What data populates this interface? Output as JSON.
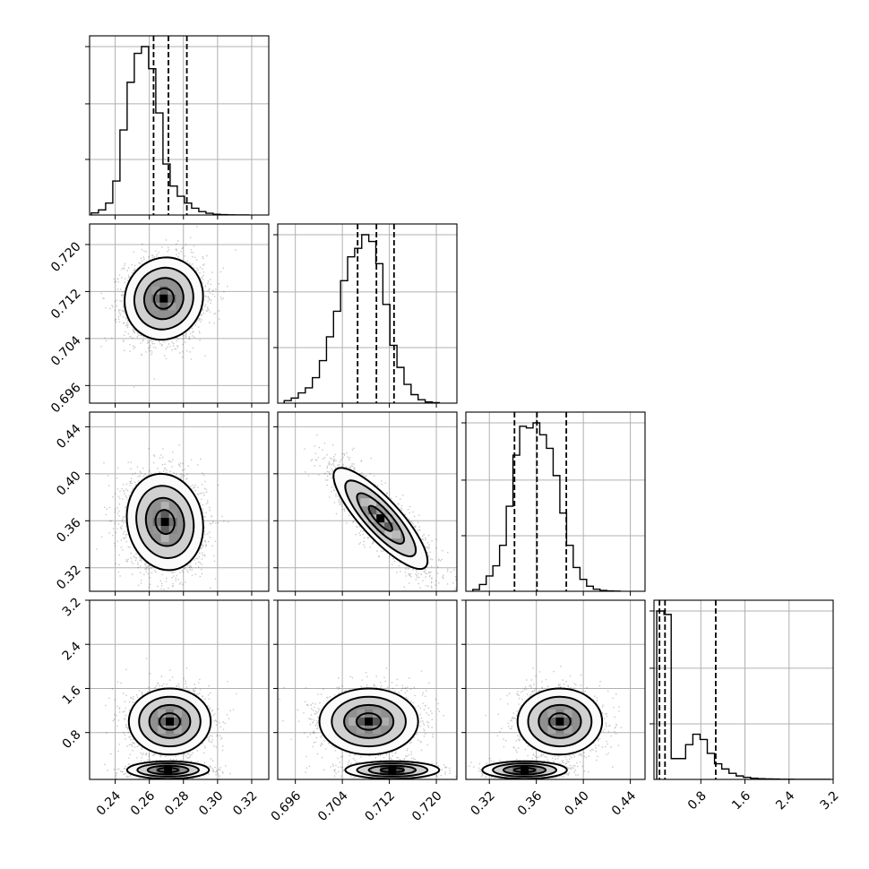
{
  "chart_data": {
    "type": "corner",
    "parameters": [
      {
        "range": [
          0.225,
          0.33
        ],
        "ticks": [
          0.24,
          0.26,
          0.28,
          0.3,
          0.32
        ],
        "tick_labels": [
          "0.24",
          "0.26",
          "0.28",
          "0.30",
          "0.32"
        ],
        "quantiles": [
          0.2625,
          0.2712,
          0.282
        ],
        "hist_bins": [
          0.226,
          0.2302,
          0.2344,
          0.2386,
          0.2428,
          0.247,
          0.2512,
          0.2554,
          0.2596,
          0.2638,
          0.268,
          0.2722,
          0.2764,
          0.2806,
          0.2848,
          0.289,
          0.2932,
          0.2974,
          0.3016,
          0.3058,
          0.31,
          0.3142,
          0.3184
        ],
        "hist_values": [
          0.012,
          0.03,
          0.07,
          0.2,
          0.5,
          0.78,
          0.95,
          0.99,
          0.86,
          0.6,
          0.3,
          0.17,
          0.11,
          0.07,
          0.04,
          0.02,
          0.01,
          0.004,
          0.002,
          0.001,
          0.0005,
          0.0003
        ]
      },
      {
        "range": [
          0.693,
          0.7235
        ],
        "ticks": [
          0.696,
          0.704,
          0.712,
          0.72
        ],
        "tick_labels": [
          "0.696",
          "0.704",
          "0.712",
          "0.720"
        ],
        "quantiles": [
          0.7066,
          0.7098,
          0.7128
        ],
        "hist_bins": [
          0.6941,
          0.6953,
          0.6965,
          0.6977,
          0.6989,
          0.7001,
          0.7013,
          0.7025,
          0.7037,
          0.7049,
          0.7061,
          0.7073,
          0.7085,
          0.7097,
          0.7109,
          0.7121,
          0.7133,
          0.7145,
          0.7157,
          0.7169,
          0.7181,
          0.7193,
          0.7205
        ],
        "hist_values": [
          0.015,
          0.03,
          0.06,
          0.09,
          0.15,
          0.25,
          0.39,
          0.54,
          0.72,
          0.86,
          0.91,
          0.99,
          0.95,
          0.82,
          0.58,
          0.34,
          0.21,
          0.11,
          0.05,
          0.02,
          0.007,
          0.003
        ]
      },
      {
        "range": [
          0.3,
          0.4525
        ],
        "ticks": [
          0.32,
          0.36,
          0.4,
          0.44
        ],
        "tick_labels": [
          "0.32",
          "0.36",
          "0.40",
          "0.44"
        ],
        "quantiles": [
          0.3414,
          0.3605,
          0.3855
        ],
        "hist_bins": [
          0.3059,
          0.3116,
          0.3173,
          0.323,
          0.3287,
          0.3344,
          0.3401,
          0.3458,
          0.3515,
          0.3572,
          0.3629,
          0.3686,
          0.3743,
          0.38,
          0.3857,
          0.3914,
          0.3971,
          0.4028,
          0.4085,
          0.4142,
          0.4199,
          0.4256,
          0.4313
        ],
        "hist_values": [
          0.01,
          0.04,
          0.09,
          0.15,
          0.27,
          0.5,
          0.8,
          0.97,
          0.96,
          0.99,
          0.92,
          0.84,
          0.68,
          0.46,
          0.27,
          0.14,
          0.07,
          0.03,
          0.012,
          0.005,
          0.002,
          0.001
        ]
      },
      {
        "range": [
          -0.05,
          3.2
        ],
        "ticks": [
          0.8,
          1.6,
          2.4,
          3.2
        ],
        "tick_labels": [
          "0.8",
          "1.6",
          "2.4",
          "3.2"
        ],
        "quantiles": [
          0.05,
          0.15,
          1.07
        ],
        "hist_bins": [
          0.0,
          0.131,
          0.262,
          0.393,
          0.524,
          0.655,
          0.786,
          0.917,
          1.048,
          1.179,
          1.31,
          1.441,
          1.572,
          1.703,
          1.834,
          1.965,
          2.096,
          2.227,
          2.358,
          2.489,
          2.62,
          2.751,
          2.882,
          3.013,
          3.144
        ],
        "hist_values": [
          0.97,
          0.95,
          0.12,
          0.12,
          0.2,
          0.26,
          0.23,
          0.15,
          0.09,
          0.06,
          0.035,
          0.02,
          0.012,
          0.007,
          0.004,
          0.003,
          0.002,
          0.001,
          0.0008,
          0.0005,
          0.0003,
          0.0002,
          0.0001,
          0.0001
        ]
      }
    ],
    "pairs": [
      {
        "row": 1,
        "col": 0,
        "mode": "single",
        "center": [
          0.2685,
          0.7108
        ],
        "sigma": [
          0.0115,
          0.0035
        ],
        "rho": 0.06
      },
      {
        "row": 2,
        "col": 0,
        "mode": "single",
        "center": [
          0.2692,
          0.359
        ],
        "sigma": [
          0.0112,
          0.0205
        ],
        "rho": -0.1
      },
      {
        "row": 2,
        "col": 1,
        "mode": "single",
        "center": [
          0.7105,
          0.362
        ],
        "sigma": [
          0.004,
          0.0215
        ],
        "rho": -0.84
      },
      {
        "row": 3,
        "col": 0,
        "mode": "bimodal",
        "centers": [
          [
            0.272,
            1.0
          ],
          [
            0.271,
            0.12
          ]
        ],
        "sigmas": [
          [
            0.012,
            0.3
          ],
          [
            0.012,
            0.08
          ]
        ],
        "weights": [
          0.7,
          0.3
        ]
      },
      {
        "row": 3,
        "col": 1,
        "mode": "bimodal",
        "centers": [
          [
            0.7085,
            1.0
          ],
          [
            0.7125,
            0.12
          ]
        ],
        "sigmas": [
          [
            0.0042,
            0.3
          ],
          [
            0.004,
            0.08
          ]
        ],
        "weights": [
          0.7,
          0.3
        ]
      },
      {
        "row": 3,
        "col": 2,
        "mode": "bimodal",
        "centers": [
          [
            0.38,
            1.0
          ],
          [
            0.35,
            0.12
          ]
        ],
        "sigmas": [
          [
            0.018,
            0.3
          ],
          [
            0.018,
            0.08
          ]
        ],
        "weights": [
          0.7,
          0.3
        ]
      }
    ],
    "grid": true,
    "contour_levels_sigma": [
      0.5,
      1.0,
      1.5,
      2.0
    ]
  },
  "colors": {
    "hist": "#000000",
    "grid": "#b0b0b0",
    "scatter": "#000000",
    "contour": "#000000"
  }
}
